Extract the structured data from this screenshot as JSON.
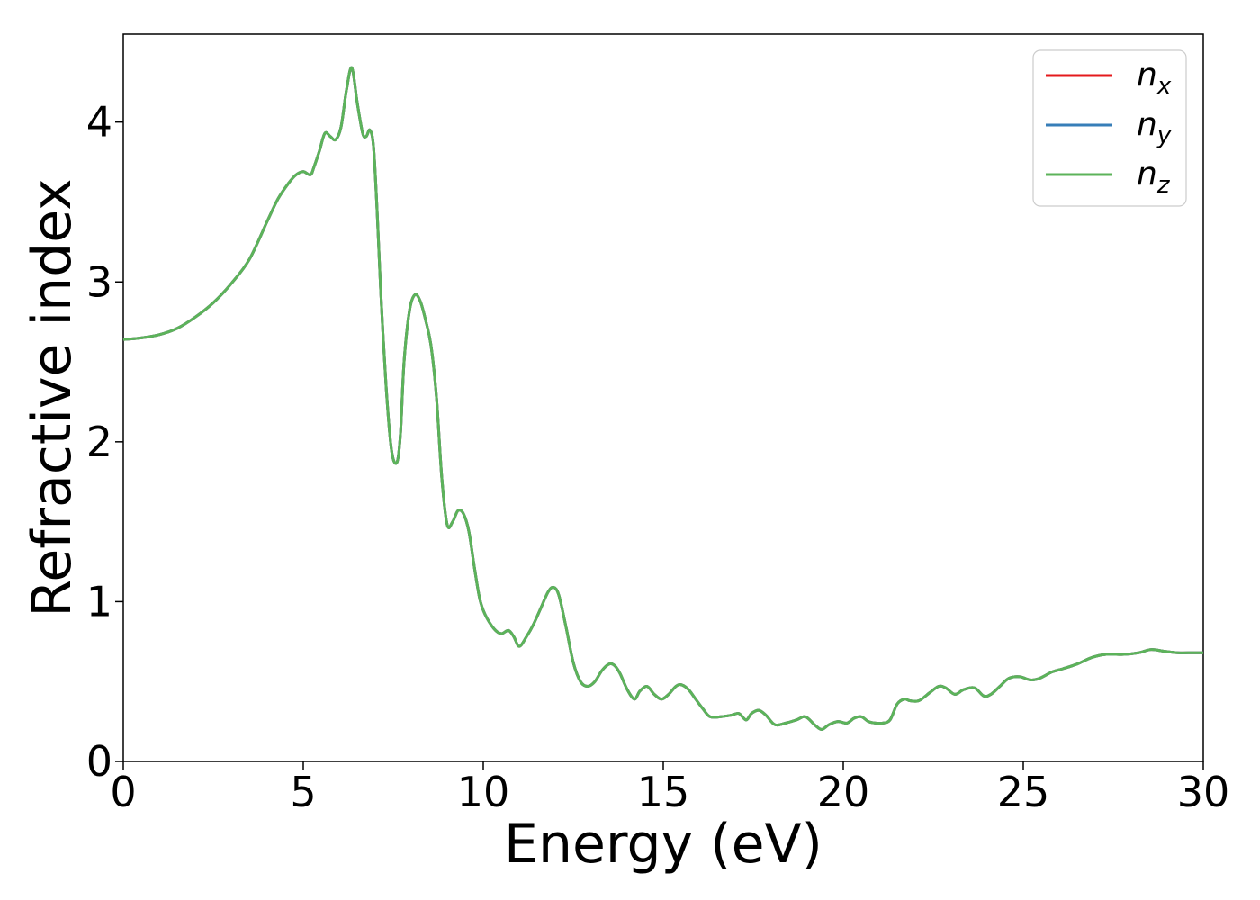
{
  "chart_data": {
    "type": "line",
    "title": "",
    "xlabel": "Energy (eV)",
    "ylabel": "Refractive index",
    "xlim": [
      0,
      30
    ],
    "ylim": [
      0,
      4.55
    ],
    "xticks": [
      0,
      5,
      10,
      15,
      20,
      25,
      30
    ],
    "xtick_labels": [
      "0",
      "5",
      "10",
      "15",
      "20",
      "25",
      "30"
    ],
    "yticks": [
      0,
      1,
      2,
      3,
      4
    ],
    "ytick_labels": [
      "0",
      "1",
      "2",
      "3",
      "4"
    ],
    "grid": false,
    "legend_position": "top-right",
    "x": [
      0,
      0.5,
      1,
      1.5,
      2,
      2.5,
      3,
      3.5,
      4,
      4.3,
      4.6,
      4.8,
      5.0,
      5.2,
      5.3,
      5.45,
      5.6,
      5.75,
      5.9,
      6.05,
      6.2,
      6.35,
      6.5,
      6.65,
      6.75,
      6.85,
      6.95,
      7.05,
      7.15,
      7.3,
      7.45,
      7.6,
      7.7,
      7.8,
      7.95,
      8.1,
      8.25,
      8.4,
      8.55,
      8.7,
      8.85,
      9.0,
      9.15,
      9.3,
      9.45,
      9.6,
      9.75,
      9.9,
      10.05,
      10.3,
      10.5,
      10.7,
      10.85,
      11.0,
      11.2,
      11.4,
      11.6,
      11.8,
      11.95,
      12.1,
      12.3,
      12.5,
      12.7,
      12.9,
      13.1,
      13.3,
      13.5,
      13.65,
      13.8,
      14.0,
      14.2,
      14.35,
      14.55,
      14.75,
      14.95,
      15.15,
      15.35,
      15.5,
      15.7,
      15.9,
      16.1,
      16.3,
      16.6,
      16.9,
      17.1,
      17.3,
      17.45,
      17.65,
      17.85,
      18.1,
      18.4,
      18.7,
      18.95,
      19.2,
      19.4,
      19.6,
      19.85,
      20.1,
      20.3,
      20.5,
      20.7,
      20.9,
      21.1,
      21.3,
      21.5,
      21.7,
      21.85,
      22.1,
      22.4,
      22.65,
      22.85,
      23.1,
      23.35,
      23.65,
      23.9,
      24.1,
      24.35,
      24.6,
      24.9,
      25.2,
      25.45,
      25.8,
      26.1,
      26.5,
      26.9,
      27.3,
      27.8,
      28.2,
      28.55,
      28.9,
      29.3,
      29.7,
      30.0
    ],
    "series": [
      {
        "name": "n_x",
        "label_base": "n",
        "label_sub": "x",
        "color": "#e41a1c",
        "values_ref": "nz"
      },
      {
        "name": "n_y",
        "label_base": "n",
        "label_sub": "y",
        "color": "#377eb8",
        "values_ref": "nz"
      },
      {
        "name": "n_z",
        "label_base": "n",
        "label_sub": "z",
        "color": "#5cb35a",
        "values_ref": "nz"
      }
    ],
    "y": [
      2.64,
      2.65,
      2.67,
      2.71,
      2.78,
      2.87,
      2.99,
      3.14,
      3.38,
      3.52,
      3.62,
      3.67,
      3.69,
      3.67,
      3.72,
      3.82,
      3.93,
      3.91,
      3.89,
      3.97,
      4.2,
      4.34,
      4.12,
      3.93,
      3.91,
      3.95,
      3.85,
      3.45,
      2.95,
      2.35,
      1.95,
      1.87,
      2.05,
      2.5,
      2.82,
      2.92,
      2.88,
      2.76,
      2.6,
      2.28,
      1.77,
      1.48,
      1.5,
      1.57,
      1.55,
      1.44,
      1.22,
      1.02,
      0.92,
      0.83,
      0.8,
      0.82,
      0.78,
      0.72,
      0.78,
      0.86,
      0.96,
      1.06,
      1.09,
      1.04,
      0.84,
      0.62,
      0.5,
      0.47,
      0.5,
      0.57,
      0.61,
      0.6,
      0.55,
      0.45,
      0.39,
      0.44,
      0.47,
      0.42,
      0.39,
      0.42,
      0.47,
      0.48,
      0.45,
      0.39,
      0.33,
      0.28,
      0.28,
      0.29,
      0.3,
      0.26,
      0.3,
      0.32,
      0.29,
      0.23,
      0.24,
      0.26,
      0.28,
      0.23,
      0.2,
      0.23,
      0.25,
      0.24,
      0.27,
      0.28,
      0.25,
      0.24,
      0.24,
      0.26,
      0.36,
      0.39,
      0.38,
      0.38,
      0.43,
      0.47,
      0.46,
      0.42,
      0.45,
      0.46,
      0.41,
      0.42,
      0.47,
      0.52,
      0.53,
      0.51,
      0.52,
      0.56,
      0.58,
      0.61,
      0.65,
      0.67,
      0.67,
      0.68,
      0.7,
      0.69,
      0.68,
      0.68,
      0.68
    ]
  }
}
